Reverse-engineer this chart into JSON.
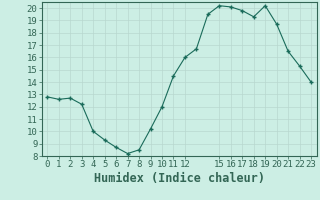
{
  "xlabel": "Humidex (Indice chaleur)",
  "ylabel": "",
  "x_values": [
    0,
    1,
    2,
    3,
    4,
    5,
    6,
    7,
    8,
    9,
    10,
    11,
    12,
    13,
    14,
    15,
    16,
    17,
    18,
    19,
    20,
    21,
    22,
    23
  ],
  "y_values": [
    12.8,
    12.6,
    12.7,
    12.2,
    10.0,
    9.3,
    8.7,
    8.2,
    8.5,
    10.2,
    12.0,
    14.5,
    16.0,
    16.7,
    19.5,
    20.2,
    20.1,
    19.8,
    19.3,
    20.2,
    18.7,
    16.5,
    15.3,
    14.0
  ],
  "line_color": "#1a6b5a",
  "marker_color": "#1a6b5a",
  "bg_color": "#cceee4",
  "grid_color": "#b8d8cf",
  "axis_color": "#336655",
  "ylim": [
    8,
    20.5
  ],
  "xlim": [
    -0.5,
    23.5
  ],
  "yticks": [
    8,
    9,
    10,
    11,
    12,
    13,
    14,
    15,
    16,
    17,
    18,
    19,
    20
  ],
  "xticks": [
    0,
    1,
    2,
    3,
    4,
    5,
    6,
    7,
    8,
    9,
    10,
    11,
    12,
    15,
    16,
    17,
    18,
    19,
    20,
    21,
    22,
    23
  ],
  "tick_fontsize": 6.5,
  "xlabel_fontsize": 8.5
}
